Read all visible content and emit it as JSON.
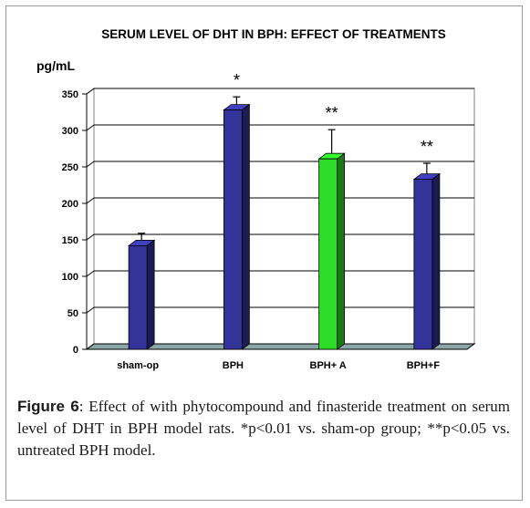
{
  "figure": {
    "caption_label": "Figure 6",
    "caption_text": ": Effect of with phytocompound and finasteride treatment on serum level of DHT in BPH model rats. *p<0.01 vs. sham-op group; **p<0.05 vs. untreated BPH model."
  },
  "chart_data": {
    "type": "bar",
    "title": "SERUM LEVEL OF DHT IN BPH: EFFECT OF TREATMENTS",
    "ylabel": "pg/mL",
    "xlabel": "",
    "categories": [
      "sham-op",
      "BPH",
      "BPH+ A",
      "BPH+F"
    ],
    "values": [
      142,
      328,
      261,
      233
    ],
    "error_plus": [
      17,
      18,
      40,
      22
    ],
    "significance": [
      "",
      "*",
      "**",
      "**"
    ],
    "bar_colors": [
      "#33339a",
      "#33339a",
      "#2bdd26",
      "#33339a"
    ],
    "ylim": [
      0,
      350
    ],
    "yticks": [
      0,
      50,
      100,
      150,
      200,
      250,
      300,
      350
    ],
    "grid": true,
    "legend": "none",
    "style": "3d-columns"
  }
}
